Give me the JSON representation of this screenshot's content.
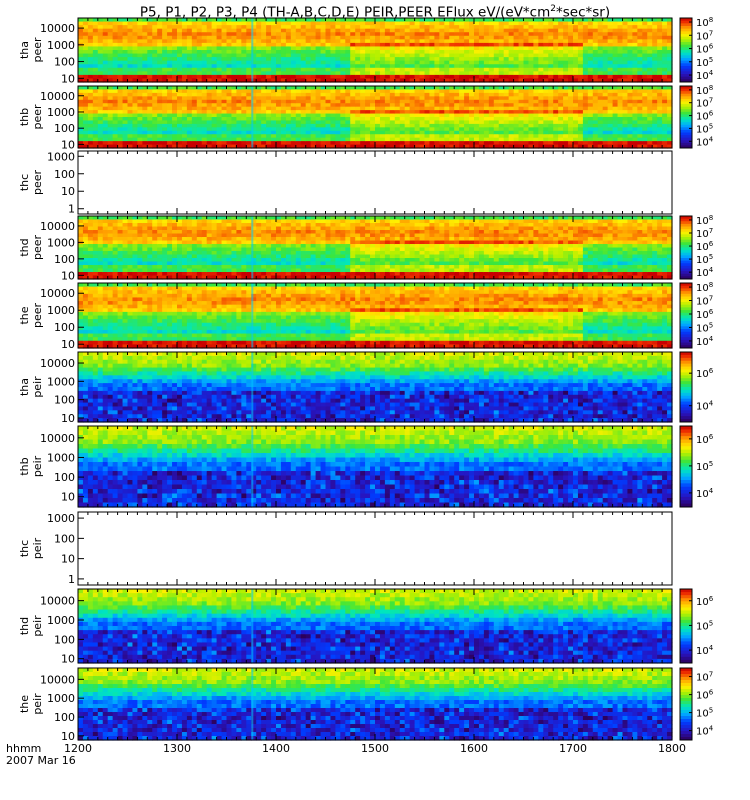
{
  "title": {
    "text": "P5, P1, P2, P3, P4 (TH-A,B,C,D,E) PEIR,PEER EFlux eV/(eV*cm",
    "superscript": "2",
    "suffix": "*sec*sr)"
  },
  "xaxis": {
    "ticks": [
      "1200",
      "1300",
      "1400",
      "1500",
      "1600",
      "1700",
      "1800"
    ],
    "range": [
      1200,
      1800
    ],
    "label_line1": "hhmm",
    "label_line2": "2007 Mar 16"
  },
  "chart_data": [
    {
      "type": "heatmap",
      "probe": "tha",
      "species": "peer",
      "ylabel_line1": "tha",
      "ylabel_line2": "peer",
      "yscale": "log",
      "yrange": [
        6,
        40000
      ],
      "yticks": [
        "10",
        "100",
        "1000",
        "10000"
      ],
      "has_data": true,
      "colorbar": {
        "ticks": [
          "10^4",
          "10^5",
          "10^6",
          "10^7",
          "10^8"
        ],
        "range": [
          3000,
          200000000
        ]
      }
    },
    {
      "type": "heatmap",
      "probe": "thb",
      "species": "peer",
      "ylabel_line1": "thb",
      "ylabel_line2": "peer",
      "yscale": "log",
      "yrange": [
        6,
        40000
      ],
      "yticks": [
        "10",
        "100",
        "1000",
        "10000"
      ],
      "has_data": true,
      "colorbar": {
        "ticks": [
          "10^4",
          "10^5",
          "10^6",
          "10^7",
          "10^8"
        ],
        "range": [
          3000,
          200000000
        ]
      }
    },
    {
      "type": "heatmap",
      "probe": "thc",
      "species": "peer",
      "ylabel_line1": "thc",
      "ylabel_line2": "peer",
      "yscale": "log",
      "yrange": [
        0.5,
        2000
      ],
      "yticks": [
        "1",
        "10",
        "100",
        "1000"
      ],
      "has_data": false
    },
    {
      "type": "heatmap",
      "probe": "thd",
      "species": "peer",
      "ylabel_line1": "thd",
      "ylabel_line2": "peer",
      "yscale": "log",
      "yrange": [
        6,
        40000
      ],
      "yticks": [
        "10",
        "100",
        "1000",
        "10000"
      ],
      "has_data": true,
      "colorbar": {
        "ticks": [
          "10^4",
          "10^5",
          "10^6",
          "10^7",
          "10^8"
        ],
        "range": [
          3000,
          200000000
        ]
      }
    },
    {
      "type": "heatmap",
      "probe": "the",
      "species": "peer",
      "ylabel_line1": "the",
      "ylabel_line2": "peer",
      "yscale": "log",
      "yrange": [
        6,
        40000
      ],
      "yticks": [
        "10",
        "100",
        "1000",
        "10000"
      ],
      "has_data": true,
      "colorbar": {
        "ticks": [
          "10^4",
          "10^5",
          "10^6",
          "10^7",
          "10^8"
        ],
        "range": [
          3000,
          200000000
        ]
      }
    },
    {
      "type": "heatmap",
      "probe": "tha",
      "species": "peir",
      "ylabel_line1": "tha",
      "ylabel_line2": "peir",
      "yscale": "log",
      "yrange": [
        6,
        40000
      ],
      "yticks": [
        "10",
        "100",
        "1000",
        "10000"
      ],
      "has_data": true,
      "colorbar": {
        "ticks": [
          "10^4",
          "10^6"
        ],
        "range": [
          1000,
          20000000
        ]
      }
    },
    {
      "type": "heatmap",
      "probe": "thb",
      "species": "peir",
      "ylabel_line1": "thb",
      "ylabel_line2": "peir",
      "yscale": "log",
      "yrange": [
        3,
        40000
      ],
      "yticks": [
        "10",
        "100",
        "1000",
        "10000"
      ],
      "has_data": true,
      "colorbar": {
        "ticks": [
          "10^4",
          "10^5",
          "10^6"
        ],
        "range": [
          3000,
          3000000
        ]
      }
    },
    {
      "type": "heatmap",
      "probe": "thc",
      "species": "peir",
      "ylabel_line1": "thc",
      "ylabel_line2": "peir",
      "yscale": "log",
      "yrange": [
        0.5,
        2000
      ],
      "yticks": [
        "1",
        "10",
        "100",
        "1000"
      ],
      "has_data": false
    },
    {
      "type": "heatmap",
      "probe": "thd",
      "species": "peir",
      "ylabel_line1": "thd",
      "ylabel_line2": "peir",
      "yscale": "log",
      "yrange": [
        6,
        40000
      ],
      "yticks": [
        "10",
        "100",
        "1000",
        "10000"
      ],
      "has_data": true,
      "colorbar": {
        "ticks": [
          "10^4",
          "10^5",
          "10^6"
        ],
        "range": [
          3000,
          3000000
        ]
      }
    },
    {
      "type": "heatmap",
      "probe": "the",
      "species": "peir",
      "ylabel_line1": "the",
      "ylabel_line2": "peir",
      "yscale": "log",
      "yrange": [
        6,
        40000
      ],
      "yticks": [
        "10",
        "100",
        "1000",
        "10000"
      ],
      "has_data": true,
      "colorbar": {
        "ticks": [
          "10^4",
          "10^5",
          "10^6",
          "10^7"
        ],
        "range": [
          3000,
          30000000
        ]
      }
    }
  ]
}
